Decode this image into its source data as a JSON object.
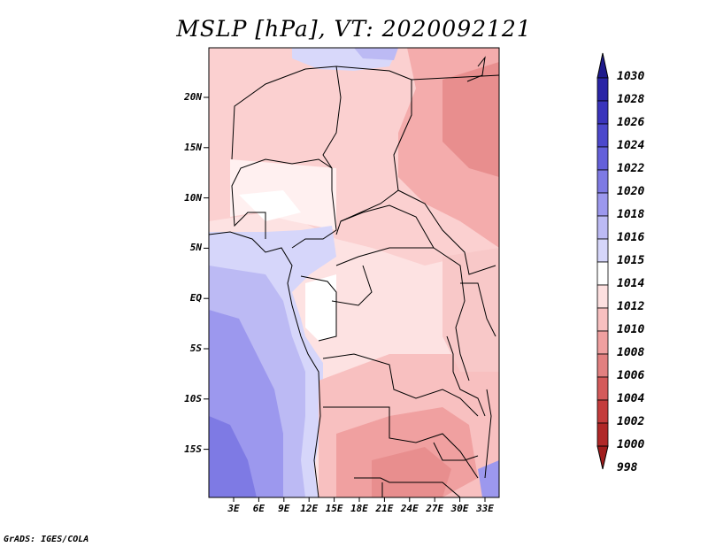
{
  "title": "MSLP [hPa], VT: 2020092121",
  "footer": "GrADS: IGES/COLA",
  "map": {
    "lat_ticks": [
      "20N",
      "15N",
      "10N",
      "5N",
      "EQ",
      "5S",
      "10S",
      "15S"
    ],
    "lon_ticks": [
      "3E",
      "6E",
      "9E",
      "12E",
      "15E",
      "18E",
      "21E",
      "24E",
      "27E",
      "30E",
      "33E"
    ]
  },
  "colorbar": {
    "levels": [
      "1030",
      "1028",
      "1026",
      "1024",
      "1022",
      "1020",
      "1018",
      "1016",
      "1015",
      "1014",
      "1012",
      "1010",
      "1008",
      "1006",
      "1004",
      "1002",
      "1000",
      "998"
    ],
    "colors": [
      "#1e1a8c",
      "#2a24a6",
      "#3a34bc",
      "#4c48cc",
      "#6460da",
      "#7e7ae4",
      "#9c98ee",
      "#bcbaf4",
      "#d6d6fa",
      "#ffffff",
      "#fde0e0",
      "#f8c0c0",
      "#f0a0a0",
      "#e28080",
      "#d45a5a",
      "#c43c3c",
      "#b02828",
      "#a01c1c"
    ]
  }
}
